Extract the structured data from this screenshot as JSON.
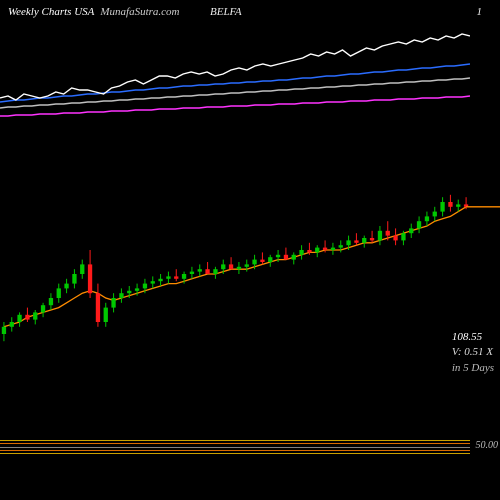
{
  "header": {
    "title": "Weekly Charts USA",
    "site": "MunafaSutra.com",
    "ticker": "BELFA",
    "page_num": "1"
  },
  "colors": {
    "bg": "#000000",
    "text": "#ffffff",
    "line_white": "#ffffff",
    "line_blue": "#2a6cff",
    "line_grey": "#bfbfbf",
    "line_magenta": "#ff33ff",
    "candle_up": "#00c800",
    "candle_down": "#ff1a1a",
    "ma_orange": "#ff8c00",
    "band_yellow": "#c8a000",
    "band_orange": "#d86a00",
    "band_grey": "#808080"
  },
  "info": {
    "price": "108.55",
    "volume": "V: 0.51 X",
    "days": "in  5 Days"
  },
  "top_lines": {
    "white": [
      68,
      66,
      70,
      64,
      66,
      68,
      66,
      62,
      64,
      58,
      60,
      60,
      62,
      64,
      58,
      56,
      52,
      50,
      54,
      50,
      46,
      46,
      48,
      44,
      42,
      44,
      42,
      46,
      44,
      40,
      38,
      40,
      36,
      34,
      36,
      34,
      32,
      30,
      28,
      24,
      26,
      22,
      24,
      20,
      26,
      22,
      18,
      20,
      16,
      14,
      12,
      14,
      10,
      12,
      8,
      10,
      6,
      8,
      4,
      6
    ],
    "blue": [
      72,
      71,
      70,
      70,
      69,
      68,
      68,
      67,
      66,
      66,
      65,
      64,
      64,
      63,
      62,
      62,
      61,
      60,
      60,
      59,
      58,
      58,
      57,
      56,
      56,
      55,
      55,
      54,
      54,
      53,
      53,
      52,
      52,
      51,
      51,
      50,
      50,
      49,
      48,
      48,
      47,
      46,
      46,
      45,
      44,
      44,
      43,
      42,
      42,
      41,
      40,
      40,
      39,
      38,
      38,
      37,
      36,
      36,
      35,
      34
    ],
    "grey": [
      78,
      77,
      77,
      76,
      76,
      75,
      75,
      74,
      74,
      73,
      73,
      72,
      72,
      71,
      71,
      70,
      70,
      69,
      69,
      68,
      68,
      67,
      67,
      66,
      66,
      65,
      65,
      64,
      64,
      63,
      63,
      62,
      62,
      61,
      61,
      60,
      60,
      59,
      59,
      58,
      58,
      57,
      57,
      56,
      56,
      55,
      55,
      54,
      54,
      53,
      53,
      52,
      52,
      51,
      51,
      50,
      50,
      49,
      49,
      48
    ],
    "magenta": [
      86,
      86,
      85,
      85,
      85,
      84,
      84,
      84,
      83,
      83,
      83,
      82,
      82,
      82,
      81,
      81,
      81,
      80,
      80,
      80,
      79,
      79,
      79,
      78,
      78,
      78,
      77,
      77,
      77,
      76,
      76,
      76,
      75,
      75,
      75,
      74,
      74,
      74,
      73,
      73,
      73,
      72,
      72,
      72,
      71,
      71,
      71,
      70,
      70,
      70,
      69,
      69,
      69,
      68,
      68,
      68,
      67,
      67,
      67,
      66
    ]
  },
  "candle_chart": {
    "type": "candlestick",
    "y_min": 40,
    "y_max": 115,
    "ma": [
      58,
      59,
      60,
      62,
      63,
      64,
      65,
      66,
      68,
      70,
      72,
      73,
      72,
      70,
      69,
      70,
      71,
      72,
      73,
      74,
      75,
      76,
      76,
      77,
      78,
      79,
      80,
      80,
      81,
      82,
      82,
      82,
      83,
      84,
      85,
      86,
      86,
      87,
      88,
      89,
      89,
      90,
      90,
      90,
      91,
      92,
      93,
      93,
      94,
      95,
      96,
      97,
      98,
      99,
      100,
      102,
      103,
      104,
      106,
      108
    ],
    "candles": [
      {
        "o": 55,
        "h": 60,
        "l": 52,
        "c": 58
      },
      {
        "o": 58,
        "h": 62,
        "l": 56,
        "c": 60
      },
      {
        "o": 60,
        "h": 64,
        "l": 58,
        "c": 63
      },
      {
        "o": 63,
        "h": 66,
        "l": 60,
        "c": 61
      },
      {
        "o": 61,
        "h": 65,
        "l": 59,
        "c": 64
      },
      {
        "o": 64,
        "h": 68,
        "l": 62,
        "c": 67
      },
      {
        "o": 67,
        "h": 72,
        "l": 65,
        "c": 70
      },
      {
        "o": 70,
        "h": 76,
        "l": 68,
        "c": 74
      },
      {
        "o": 74,
        "h": 78,
        "l": 72,
        "c": 76
      },
      {
        "o": 76,
        "h": 82,
        "l": 74,
        "c": 80
      },
      {
        "o": 80,
        "h": 86,
        "l": 78,
        "c": 84
      },
      {
        "o": 84,
        "h": 90,
        "l": 70,
        "c": 72
      },
      {
        "o": 72,
        "h": 76,
        "l": 58,
        "c": 60
      },
      {
        "o": 60,
        "h": 68,
        "l": 58,
        "c": 66
      },
      {
        "o": 66,
        "h": 72,
        "l": 64,
        "c": 70
      },
      {
        "o": 70,
        "h": 74,
        "l": 68,
        "c": 72
      },
      {
        "o": 72,
        "h": 75,
        "l": 70,
        "c": 73
      },
      {
        "o": 73,
        "h": 76,
        "l": 71,
        "c": 74
      },
      {
        "o": 74,
        "h": 78,
        "l": 72,
        "c": 76
      },
      {
        "o": 76,
        "h": 79,
        "l": 74,
        "c": 77
      },
      {
        "o": 77,
        "h": 80,
        "l": 75,
        "c": 78
      },
      {
        "o": 78,
        "h": 81,
        "l": 76,
        "c": 79
      },
      {
        "o": 79,
        "h": 82,
        "l": 77,
        "c": 78
      },
      {
        "o": 78,
        "h": 81,
        "l": 76,
        "c": 80
      },
      {
        "o": 80,
        "h": 83,
        "l": 78,
        "c": 81
      },
      {
        "o": 81,
        "h": 84,
        "l": 79,
        "c": 82
      },
      {
        "o": 82,
        "h": 85,
        "l": 80,
        "c": 80
      },
      {
        "o": 80,
        "h": 83,
        "l": 78,
        "c": 82
      },
      {
        "o": 82,
        "h": 86,
        "l": 80,
        "c": 84
      },
      {
        "o": 84,
        "h": 87,
        "l": 82,
        "c": 82
      },
      {
        "o": 82,
        "h": 85,
        "l": 80,
        "c": 83
      },
      {
        "o": 83,
        "h": 86,
        "l": 81,
        "c": 84
      },
      {
        "o": 84,
        "h": 88,
        "l": 82,
        "c": 86
      },
      {
        "o": 86,
        "h": 89,
        "l": 84,
        "c": 85
      },
      {
        "o": 85,
        "h": 88,
        "l": 83,
        "c": 87
      },
      {
        "o": 87,
        "h": 90,
        "l": 85,
        "c": 88
      },
      {
        "o": 88,
        "h": 91,
        "l": 86,
        "c": 86
      },
      {
        "o": 86,
        "h": 89,
        "l": 84,
        "c": 88
      },
      {
        "o": 88,
        "h": 92,
        "l": 86,
        "c": 90
      },
      {
        "o": 90,
        "h": 93,
        "l": 88,
        "c": 89
      },
      {
        "o": 89,
        "h": 92,
        "l": 87,
        "c": 91
      },
      {
        "o": 91,
        "h": 94,
        "l": 89,
        "c": 90
      },
      {
        "o": 90,
        "h": 93,
        "l": 88,
        "c": 91
      },
      {
        "o": 91,
        "h": 94,
        "l": 89,
        "c": 92
      },
      {
        "o": 92,
        "h": 96,
        "l": 90,
        "c": 94
      },
      {
        "o": 94,
        "h": 97,
        "l": 92,
        "c": 93
      },
      {
        "o": 93,
        "h": 96,
        "l": 91,
        "c": 95
      },
      {
        "o": 95,
        "h": 98,
        "l": 93,
        "c": 94
      },
      {
        "o": 94,
        "h": 100,
        "l": 92,
        "c": 98
      },
      {
        "o": 98,
        "h": 102,
        "l": 94,
        "c": 96
      },
      {
        "o": 96,
        "h": 99,
        "l": 92,
        "c": 94
      },
      {
        "o": 94,
        "h": 98,
        "l": 92,
        "c": 97
      },
      {
        "o": 97,
        "h": 101,
        "l": 95,
        "c": 99
      },
      {
        "o": 99,
        "h": 104,
        "l": 97,
        "c": 102
      },
      {
        "o": 102,
        "h": 106,
        "l": 100,
        "c": 104
      },
      {
        "o": 104,
        "h": 108,
        "l": 102,
        "c": 106
      },
      {
        "o": 106,
        "h": 112,
        "l": 104,
        "c": 110
      },
      {
        "o": 110,
        "h": 113,
        "l": 106,
        "c": 108
      },
      {
        "o": 108,
        "h": 111,
        "l": 106,
        "c": 109
      },
      {
        "o": 109,
        "h": 112,
        "l": 107,
        "c": 108
      }
    ]
  },
  "bottom_bands": {
    "bands": [
      {
        "y": 0,
        "color": "#c8a000"
      },
      {
        "y": 3,
        "color": "#d86a00"
      },
      {
        "y": 7,
        "color": "#808080"
      },
      {
        "y": 10,
        "color": "#d86a00"
      },
      {
        "y": 13,
        "color": "#c8a000"
      }
    ],
    "y_label": "50.00"
  }
}
